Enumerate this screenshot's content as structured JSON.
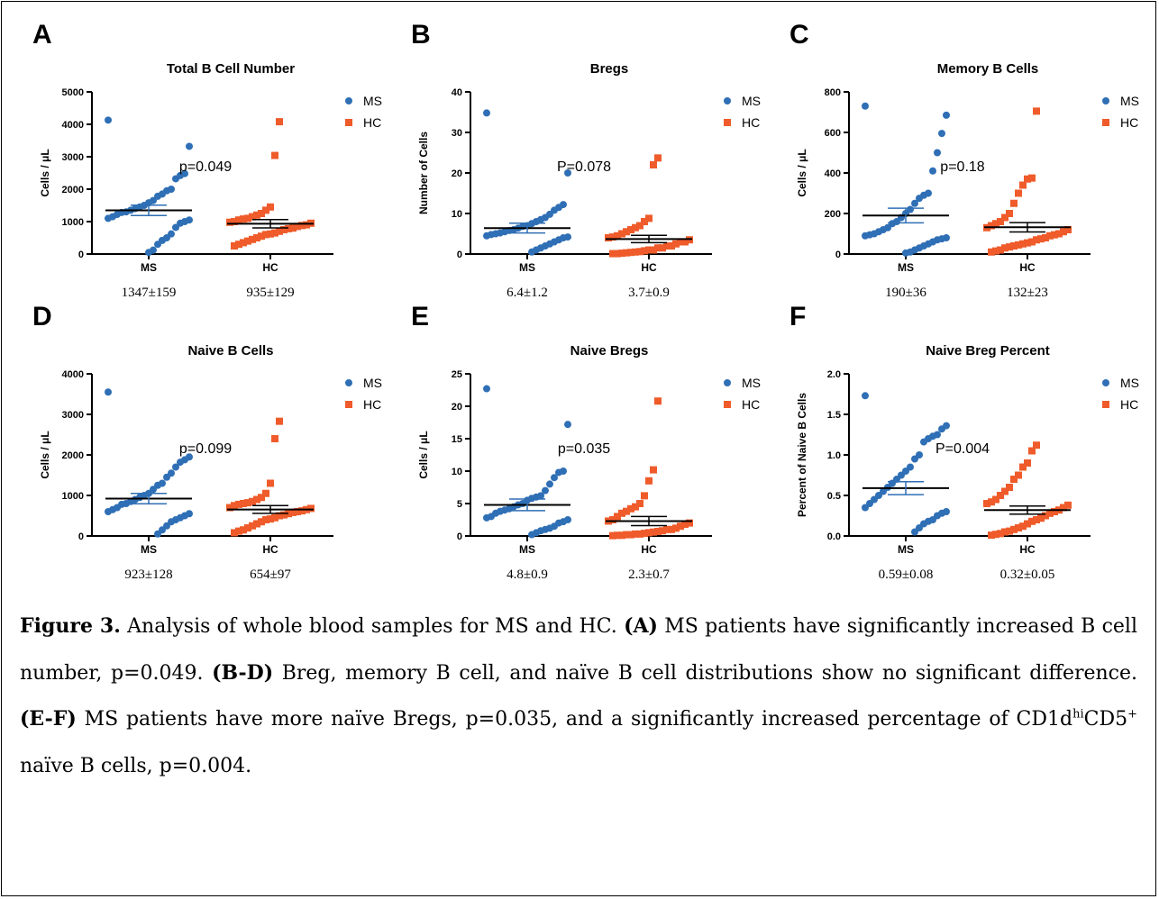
{
  "colors": {
    "ms": "#2f6fb5",
    "hc": "#ef5b2a",
    "axis": "#000000"
  },
  "chart_data": [
    {
      "type": "scatter",
      "letter": "A",
      "title": "Total B Cell Number",
      "ylabel": "Cells / μL",
      "ylim": [
        0,
        5000
      ],
      "yticks": [
        0,
        1000,
        2000,
        3000,
        4000,
        5000
      ],
      "categories": [
        "MS",
        "HC"
      ],
      "pvalue": "p=0.049",
      "summaries": [
        "1347±159",
        "935±129"
      ],
      "legend": [
        "MS",
        "HC"
      ],
      "series": [
        {
          "name": "MS",
          "mean": 1347,
          "sem": 159,
          "values": [
            4130,
            3320,
            2480,
            2420,
            2320,
            2000,
            1950,
            1850,
            1780,
            1650,
            1580,
            1500,
            1450,
            1400,
            1350,
            1300,
            1280,
            1220,
            1150,
            1100,
            1050,
            1000,
            950,
            820,
            620,
            500,
            420,
            300,
            120,
            50
          ]
        },
        {
          "name": "HC",
          "mean": 935,
          "sem": 129,
          "values": [
            4080,
            3040,
            1450,
            1350,
            1250,
            1200,
            1150,
            1100,
            1080,
            1050,
            1000,
            980,
            950,
            900,
            880,
            850,
            800,
            780,
            750,
            700,
            650,
            620,
            600,
            550,
            500,
            450,
            400,
            350,
            300,
            250
          ]
        }
      ]
    },
    {
      "type": "scatter",
      "letter": "B",
      "title": "Bregs",
      "ylabel": "Number of Cells",
      "ylim": [
        0,
        40
      ],
      "yticks": [
        0,
        10,
        20,
        30,
        40
      ],
      "categories": [
        "MS",
        "HC"
      ],
      "pvalue": "P=0.078",
      "summaries": [
        "6.4±1.2",
        "3.7±0.9"
      ],
      "legend": [
        "MS",
        "HC"
      ],
      "series": [
        {
          "name": "MS",
          "mean": 6.4,
          "sem": 1.2,
          "values": [
            34.8,
            20.0,
            12.2,
            11.5,
            10.8,
            9.8,
            9.0,
            8.5,
            8.0,
            7.5,
            7.0,
            6.8,
            6.4,
            6.0,
            5.8,
            5.5,
            5.2,
            5.0,
            4.8,
            4.5,
            4.2,
            4.0,
            3.5,
            3.0,
            2.5,
            2.0,
            1.5,
            1.0,
            0.5
          ]
        },
        {
          "name": "HC",
          "mean": 3.7,
          "sem": 0.9,
          "values": [
            23.7,
            22.0,
            8.8,
            8.0,
            7.0,
            6.5,
            6.0,
            5.5,
            5.0,
            4.5,
            4.2,
            4.0,
            3.5,
            3.0,
            3.0,
            2.5,
            2.0,
            2.0,
            1.5,
            1.5,
            1.0,
            1.0,
            0.8,
            0.6,
            0.5,
            0.4,
            0.3,
            0.2,
            0.1,
            0.1
          ]
        }
      ]
    },
    {
      "type": "scatter",
      "letter": "C",
      "title": "Memory B Cells",
      "ylabel": "Cells / μL",
      "ylim": [
        0,
        800
      ],
      "yticks": [
        0,
        200,
        400,
        600,
        800
      ],
      "categories": [
        "MS",
        "HC"
      ],
      "pvalue": "p=0.18",
      "summaries": [
        "190±36",
        "132±23"
      ],
      "legend": [
        "MS",
        "HC"
      ],
      "series": [
        {
          "name": "MS",
          "mean": 190,
          "sem": 36,
          "values": [
            730,
            685,
            595,
            500,
            410,
            300,
            290,
            275,
            250,
            220,
            200,
            180,
            160,
            150,
            130,
            120,
            110,
            100,
            95,
            90,
            80,
            75,
            70,
            60,
            50,
            40,
            30,
            20,
            10,
            5
          ]
        },
        {
          "name": "HC",
          "mean": 132,
          "sem": 23,
          "values": [
            705,
            375,
            370,
            340,
            300,
            250,
            200,
            180,
            160,
            150,
            140,
            130,
            120,
            110,
            100,
            95,
            90,
            80,
            75,
            70,
            60,
            55,
            50,
            45,
            40,
            35,
            30,
            20,
            15,
            10
          ]
        }
      ]
    },
    {
      "type": "scatter",
      "letter": "D",
      "title": "Naive B Cells",
      "ylabel": "Cells / μL",
      "ylim": [
        0,
        4000
      ],
      "yticks": [
        0,
        1000,
        2000,
        3000,
        4000
      ],
      "categories": [
        "MS",
        "HC"
      ],
      "pvalue": "p=0.099",
      "summaries": [
        "923±128",
        "654±97"
      ],
      "legend": [
        "MS",
        "HC"
      ],
      "series": [
        {
          "name": "MS",
          "mean": 923,
          "sem": 128,
          "values": [
            3550,
            1950,
            1880,
            1820,
            1700,
            1550,
            1450,
            1300,
            1250,
            1150,
            1050,
            1000,
            950,
            900,
            850,
            800,
            780,
            700,
            650,
            600,
            550,
            500,
            450,
            400,
            350,
            250,
            150,
            50
          ]
        },
        {
          "name": "HC",
          "mean": 654,
          "sem": 97,
          "values": [
            2830,
            2400,
            1300,
            1050,
            950,
            900,
            850,
            820,
            800,
            780,
            750,
            700,
            680,
            650,
            620,
            600,
            580,
            550,
            520,
            500,
            450,
            420,
            400,
            350,
            300,
            250,
            200,
            150,
            120,
            80
          ]
        }
      ]
    },
    {
      "type": "scatter",
      "letter": "E",
      "title": "Naive Bregs",
      "ylabel": "Cells / μL",
      "ylim": [
        0,
        25
      ],
      "yticks": [
        0,
        5,
        10,
        15,
        20,
        25
      ],
      "categories": [
        "MS",
        "HC"
      ],
      "pvalue": "p=0.035",
      "summaries": [
        "4.8±0.9",
        "2.3±0.7"
      ],
      "legend": [
        "MS",
        "HC"
      ],
      "series": [
        {
          "name": "MS",
          "mean": 4.8,
          "sem": 0.9,
          "values": [
            22.7,
            17.2,
            10.0,
            9.8,
            9.0,
            8.0,
            7.0,
            6.2,
            6.0,
            5.8,
            5.5,
            5.0,
            4.8,
            4.5,
            4.2,
            4.0,
            3.8,
            3.5,
            3.0,
            2.8,
            2.5,
            2.2,
            2.0,
            1.5,
            1.2,
            1.0,
            0.8,
            0.5,
            0.2
          ]
        },
        {
          "name": "HC",
          "mean": 2.3,
          "sem": 0.7,
          "values": [
            20.8,
            10.2,
            8.5,
            6.2,
            5.0,
            4.5,
            4.2,
            3.8,
            3.5,
            3.0,
            2.5,
            2.3,
            2.0,
            1.8,
            1.5,
            1.2,
            1.0,
            1.0,
            0.8,
            0.7,
            0.6,
            0.5,
            0.4,
            0.3,
            0.3,
            0.2,
            0.2,
            0.1,
            0.1,
            0.05
          ]
        }
      ]
    },
    {
      "type": "scatter",
      "letter": "F",
      "title": "Naive Breg Percent",
      "ylabel": "Percent of Naive B Cells",
      "ylim": [
        0,
        2.0
      ],
      "yticks": [
        0.0,
        0.5,
        1.0,
        1.5,
        2.0
      ],
      "tickdecimals": 1,
      "categories": [
        "MS",
        "HC"
      ],
      "pvalue": "P=0.004",
      "summaries": [
        "0.59±0.08",
        "0.32±0.05"
      ],
      "legend": [
        "MS",
        "HC"
      ],
      "series": [
        {
          "name": "MS",
          "mean": 0.59,
          "sem": 0.08,
          "values": [
            1.73,
            1.36,
            1.32,
            1.25,
            1.23,
            1.2,
            1.16,
            1.0,
            0.95,
            0.85,
            0.8,
            0.75,
            0.7,
            0.65,
            0.6,
            0.55,
            0.5,
            0.45,
            0.4,
            0.35,
            0.3,
            0.28,
            0.25,
            0.2,
            0.18,
            0.15,
            0.1,
            0.05
          ]
        },
        {
          "name": "HC",
          "mean": 0.32,
          "sem": 0.05,
          "values": [
            1.12,
            1.05,
            0.9,
            0.85,
            0.75,
            0.7,
            0.6,
            0.55,
            0.5,
            0.45,
            0.42,
            0.4,
            0.38,
            0.35,
            0.32,
            0.3,
            0.28,
            0.25,
            0.22,
            0.2,
            0.18,
            0.15,
            0.12,
            0.1,
            0.08,
            0.06,
            0.05,
            0.03,
            0.02,
            0.01
          ]
        }
      ]
    }
  ],
  "caption": {
    "fig_label": "Figure 3.",
    "t1": " Analysis of whole blood samples for MS and HC. ",
    "b1": "(A)",
    "t2": " MS patients have significantly increased B cell number, p=0.049. ",
    "b2": "(B-D)",
    "t3": " Breg, memory B cell, and naïve B cell distributions show no significant difference. ",
    "b3": "(E-F)",
    "t4": " MS patients have more naïve Bregs, p=0.035, and a significantly increased percentage of CD1d",
    "sup1": "hi",
    "t5": "CD5",
    "sup2": "+",
    "t6": " naïve B cells, p=0.004."
  }
}
